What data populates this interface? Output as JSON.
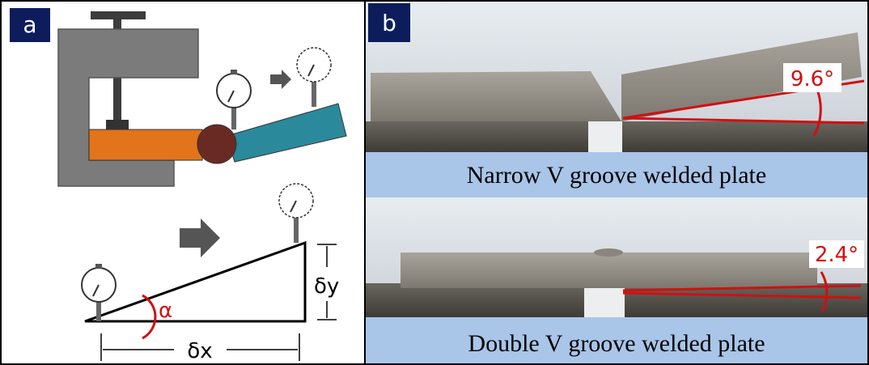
{
  "panel_a": {
    "label": "a",
    "angle": "α",
    "rise": "δy",
    "run": "δx"
  },
  "panel_b": {
    "label": "b",
    "photos": [
      {
        "angle": "9.6°",
        "caption": "Narrow V groove welded plate"
      },
      {
        "angle": "2.4°",
        "caption": "Double V groove welded plate"
      }
    ]
  }
}
